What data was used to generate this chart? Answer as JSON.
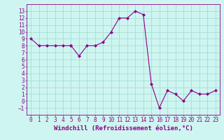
{
  "x": [
    0,
    1,
    2,
    3,
    4,
    5,
    5,
    6,
    7,
    8,
    9,
    10,
    11,
    12,
    13,
    14,
    15,
    16,
    17,
    18,
    19,
    20,
    21,
    22,
    23
  ],
  "y": [
    9,
    8,
    8,
    8,
    8,
    8,
    8,
    6.5,
    8,
    8,
    8.5,
    10,
    12,
    12,
    13,
    12.5,
    2.5,
    -1,
    1.5,
    1,
    0,
    1.5,
    1,
    1,
    1.5
  ],
  "line_color": "#8B008B",
  "marker": "D",
  "markersize": 2,
  "linewidth": 0.8,
  "xlabel": "Windchill (Refroidissement éolien,°C)",
  "ylabel": "",
  "title": "",
  "xlim": [
    -0.5,
    23.5
  ],
  "ylim": [
    -2,
    14
  ],
  "yticks": [
    -1,
    0,
    1,
    2,
    3,
    4,
    5,
    6,
    7,
    8,
    9,
    10,
    11,
    12,
    13
  ],
  "xticks": [
    0,
    1,
    2,
    3,
    4,
    5,
    6,
    7,
    8,
    9,
    10,
    11,
    12,
    13,
    14,
    15,
    16,
    17,
    18,
    19,
    20,
    21,
    22,
    23
  ],
  "bg_color": "#cef5f0",
  "grid_color": "#a0d8d0",
  "tick_fontsize": 5.5,
  "xlabel_fontsize": 6.5
}
